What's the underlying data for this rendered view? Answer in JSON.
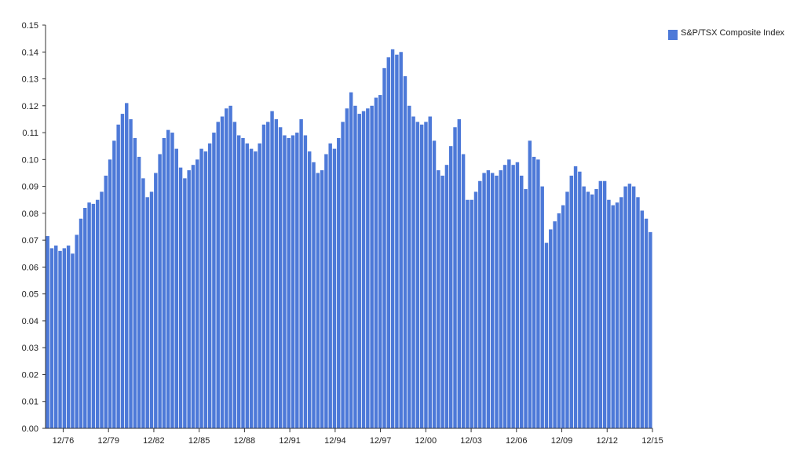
{
  "chart_data": {
    "type": "bar",
    "title": "",
    "xlabel": "",
    "ylabel": "",
    "ylim": [
      0,
      0.15
    ],
    "yticks": [
      "0.00",
      "0.01",
      "0.02",
      "0.03",
      "0.04",
      "0.05",
      "0.06",
      "0.07",
      "0.08",
      "0.09",
      "0.10",
      "0.11",
      "0.12",
      "0.13",
      "0.14",
      "0.15"
    ],
    "xticks": [
      "12/76",
      "12/79",
      "12/82",
      "12/85",
      "12/88",
      "12/91",
      "12/94",
      "12/97",
      "12/00",
      "12/03",
      "12/06",
      "12/09",
      "12/12",
      "12/15"
    ],
    "grid": false,
    "legend_position": "top-right",
    "bar_color": "#4d79d8",
    "series": [
      {
        "name": "S&P/TSX Composite Index",
        "first_period": "1/76",
        "last_period": "12/15",
        "frequency": "quarterly",
        "values": [
          0.0715,
          0.067,
          0.068,
          0.066,
          0.067,
          0.068,
          0.065,
          0.072,
          0.078,
          0.082,
          0.084,
          0.0835,
          0.085,
          0.088,
          0.094,
          0.1,
          0.107,
          0.113,
          0.117,
          0.121,
          0.115,
          0.108,
          0.101,
          0.093,
          0.086,
          0.088,
          0.095,
          0.102,
          0.108,
          0.111,
          0.11,
          0.104,
          0.097,
          0.093,
          0.096,
          0.098,
          0.1,
          0.104,
          0.103,
          0.106,
          0.11,
          0.114,
          0.116,
          0.119,
          0.12,
          0.114,
          0.109,
          0.108,
          0.106,
          0.104,
          0.103,
          0.106,
          0.113,
          0.114,
          0.118,
          0.115,
          0.112,
          0.109,
          0.108,
          0.109,
          0.11,
          0.115,
          0.109,
          0.103,
          0.099,
          0.095,
          0.096,
          0.102,
          0.106,
          0.104,
          0.108,
          0.114,
          0.119,
          0.125,
          0.12,
          0.117,
          0.118,
          0.119,
          0.12,
          0.123,
          0.124,
          0.134,
          0.138,
          0.141,
          0.139,
          0.14,
          0.131,
          0.12,
          0.116,
          0.114,
          0.113,
          0.114,
          0.116,
          0.107,
          0.096,
          0.094,
          0.098,
          0.105,
          0.112,
          0.115,
          0.102,
          0.085,
          0.085,
          0.088,
          0.092,
          0.095,
          0.096,
          0.095,
          0.094,
          0.096,
          0.098,
          0.1,
          0.098,
          0.099,
          0.094,
          0.089,
          0.107,
          0.101,
          0.1,
          0.09,
          0.069,
          0.074,
          0.077,
          0.08,
          0.083,
          0.088,
          0.094,
          0.0975,
          0.0955,
          0.09,
          0.088,
          0.087,
          0.089,
          0.092,
          0.092,
          0.085,
          0.083,
          0.084,
          0.086,
          0.09,
          0.091,
          0.09,
          0.086,
          0.081,
          0.078,
          0.073
        ]
      }
    ]
  },
  "legend": {
    "label": "S&P/TSX Composite Index",
    "color": "#4d79d8"
  }
}
